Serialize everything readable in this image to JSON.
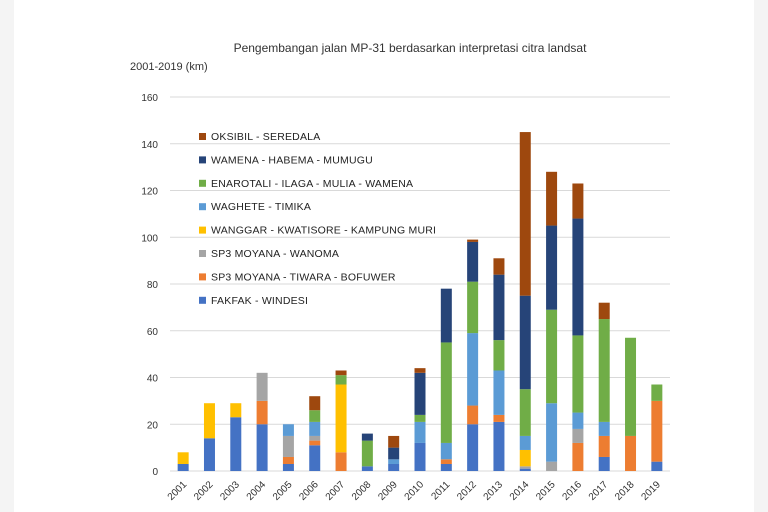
{
  "chart_data": {
    "type": "bar",
    "stacked": true,
    "title": "Pengembangan jalan MP-31 berdasarkan interpretasi citra landsat",
    "ylabel": "2001-2019 (km)",
    "xlabel": "",
    "ylim": [
      0,
      160
    ],
    "yticks": [
      0,
      20,
      40,
      60,
      80,
      100,
      120,
      140,
      160
    ],
    "grid": true,
    "legend_position": "top-left inside",
    "categories": [
      "2001",
      "2002",
      "2003",
      "2004",
      "2005",
      "2006",
      "2007",
      "2008",
      "2009",
      "2010",
      "2011",
      "2012",
      "2013",
      "2014",
      "2015",
      "2016",
      "2017",
      "2018",
      "2019"
    ],
    "series": [
      {
        "name": "FAKFAK - WINDESI",
        "color": "#4472c4",
        "values": [
          3,
          14,
          23,
          20,
          3,
          11,
          0,
          2,
          3,
          12,
          3,
          20,
          21,
          1,
          0,
          0,
          6,
          0,
          4
        ]
      },
      {
        "name": "SP3 MOYANA - TIWARA - BOFUWER",
        "color": "#ed7d31",
        "values": [
          0,
          0,
          0,
          10,
          3,
          2,
          8,
          0,
          0,
          0,
          2,
          8,
          3,
          0,
          0,
          12,
          9,
          15,
          26
        ]
      },
      {
        "name": "SP3 MOYANA - WANOMA",
        "color": "#a5a5a5",
        "values": [
          0,
          0,
          0,
          12,
          9,
          2,
          0,
          0,
          0,
          0,
          0,
          0,
          0,
          1,
          4,
          6,
          0,
          0,
          0
        ]
      },
      {
        "name": "WANGGAR - KWATISORE - KAMPUNG MURI",
        "color": "#ffc000",
        "values": [
          5,
          15,
          6,
          0,
          0,
          0,
          29,
          0,
          0,
          0,
          0,
          0,
          0,
          7,
          0,
          0,
          0,
          0,
          0
        ]
      },
      {
        "name": "WAGHETE - TIMIKA",
        "color": "#5b9bd5",
        "values": [
          0,
          0,
          0,
          0,
          5,
          6,
          0,
          0,
          2,
          9,
          7,
          31,
          19,
          6,
          25,
          7,
          6,
          0,
          0
        ]
      },
      {
        "name": "ENAROTALI - ILAGA - MULIA - WAMENA",
        "color": "#70ad47",
        "values": [
          0,
          0,
          0,
          0,
          0,
          5,
          4,
          11,
          0,
          3,
          43,
          22,
          13,
          20,
          40,
          33,
          44,
          42,
          7
        ]
      },
      {
        "name": "WAMENA - HABEMA - MUMUGU",
        "color": "#264478",
        "values": [
          0,
          0,
          0,
          0,
          0,
          0,
          0,
          3,
          5,
          18,
          23,
          17,
          28,
          40,
          36,
          50,
          0,
          0,
          0
        ]
      },
      {
        "name": "OKSIBIL - SEREDALA",
        "color": "#9e480e",
        "values": [
          0,
          0,
          0,
          0,
          0,
          6,
          2,
          0,
          5,
          2,
          0,
          1,
          7,
          70,
          23,
          15,
          7,
          0,
          0
        ]
      }
    ]
  }
}
